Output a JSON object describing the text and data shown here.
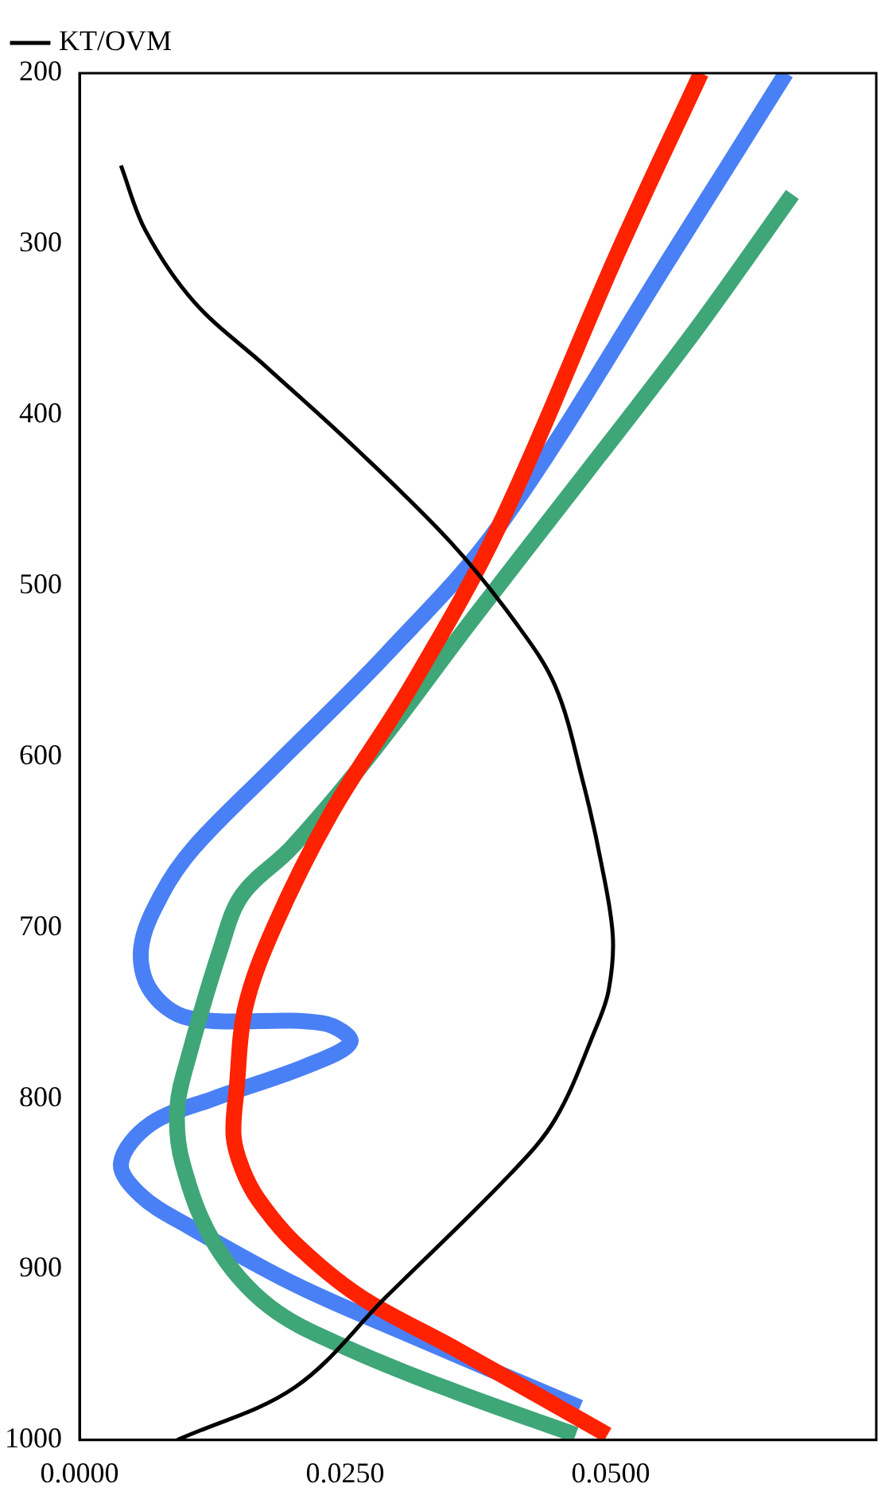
{
  "chart_data": {
    "type": "line",
    "legend": "top left",
    "grid": false,
    "marker": "none",
    "line_style": "solid",
    "xlim": [
      0,
      0.075
    ],
    "xticks": [
      {
        "value": 0,
        "label": "0.0000"
      },
      {
        "value": 0.025,
        "label": "0.0250"
      },
      {
        "value": 0.05,
        "label": "0.0500"
      }
    ],
    "ylim": [
      1000,
      200
    ],
    "yticks": [
      200,
      300,
      400,
      500,
      600,
      700,
      800,
      900,
      1000
    ],
    "series": [
      {
        "name": "KT/OVM",
        "color": "#000000",
        "x": [
          0.0039,
          0.0062,
          0.0108,
          0.0176,
          0.0259,
          0.035,
          0.0411,
          0.0448,
          0.0474,
          0.0491,
          0.0502,
          0.0498,
          0.0486,
          0.0448,
          0.0406,
          0.0289,
          0.0203,
          0.0092
        ],
        "values": [
          254,
          292,
          334,
          372,
          419,
          475,
          522,
          559,
          615,
          662,
          705,
          737,
          759,
          812,
          844,
          916,
          969,
          1000
        ]
      },
      {
        "color": "#ff2200",
        "x": [
          0.0585,
          0.0506,
          0.0395,
          0.0312,
          0.0236,
          0.0183,
          0.0156,
          0.0148,
          0.0145,
          0.0153,
          0.0168,
          0.0203,
          0.0264,
          0.0355,
          0.0497
        ],
        "values": [
          200,
          306,
          465,
          559,
          634,
          700,
          747,
          794,
          822,
          841,
          859,
          885,
          916,
          947,
          997
        ]
      },
      {
        "color": "#3fa678",
        "x": [
          0.0671,
          0.0578,
          0.0473,
          0.0367,
          0.0276,
          0.02,
          0.0153,
          0.0133,
          0.0103,
          0.0092,
          0.0097,
          0.0127,
          0.0179,
          0.0255,
          0.0355,
          0.0467
        ],
        "values": [
          271,
          352,
          437,
          522,
          597,
          653,
          681,
          712,
          775,
          806,
          838,
          885,
          922,
          947,
          972,
          997
        ]
      },
      {
        "color": "#4a80f5",
        "x": [
          0.0665,
          0.0564,
          0.0395,
          0.0289,
          0.0183,
          0.0108,
          0.0077,
          0.0058,
          0.0067,
          0.0103,
          0.0229,
          0.0255,
          0.0214,
          0.0127,
          0.0067,
          0.0039,
          0.0058,
          0.0103,
          0.0203,
          0.0305,
          0.0471
        ],
        "values": [
          200,
          300,
          465,
          540,
          606,
          653,
          681,
          712,
          737,
          753,
          756,
          767,
          781,
          800,
          815,
          838,
          857,
          875,
          909,
          937,
          981
        ]
      }
    ]
  }
}
